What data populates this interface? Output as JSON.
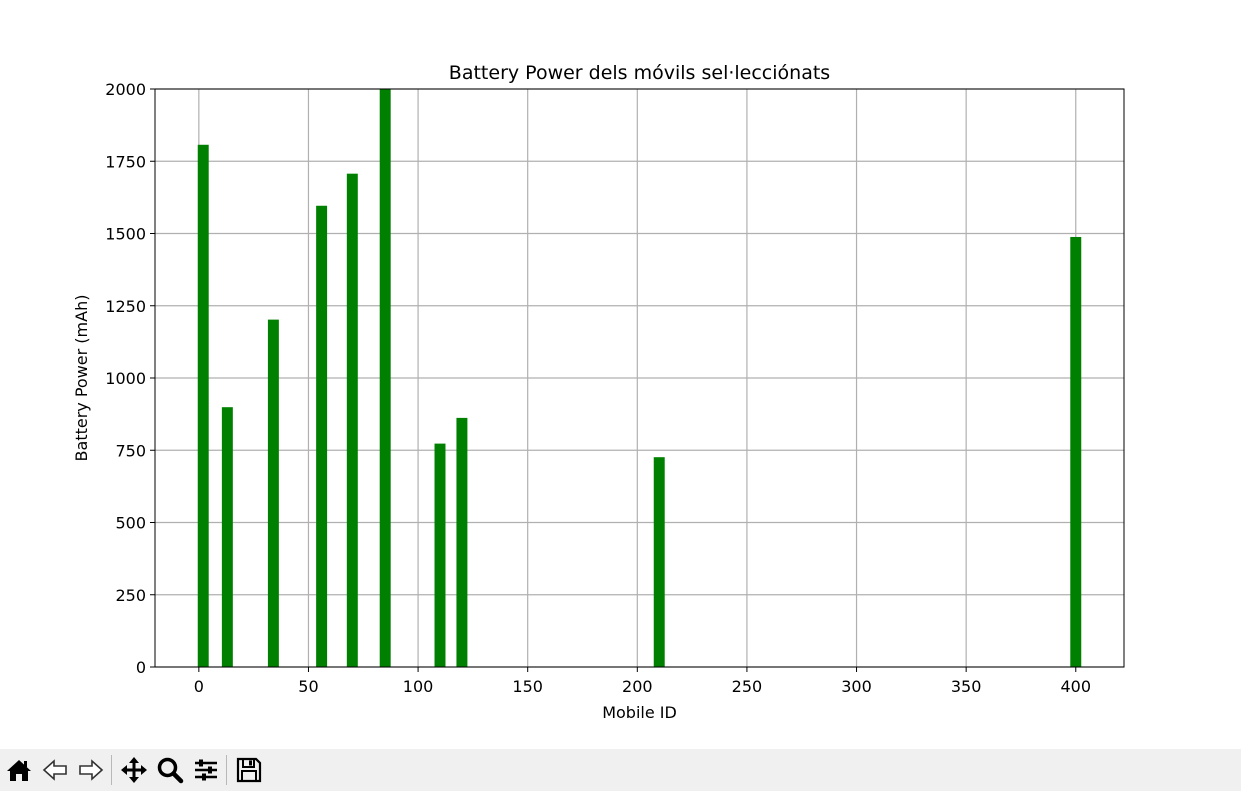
{
  "chart_data": {
    "type": "bar",
    "title": "Battery Power dels móvils sel·lecciónats",
    "xlabel": "Mobile ID",
    "ylabel": "Battery Power (mAh)",
    "bar_color": "#008000",
    "grid": true,
    "xlim": [
      -20,
      422
    ],
    "ylim": [
      0,
      2000
    ],
    "xticks": [
      0,
      50,
      100,
      150,
      200,
      250,
      300,
      350,
      400
    ],
    "yticks": [
      0,
      250,
      500,
      750,
      1000,
      1250,
      1500,
      1750,
      2000
    ],
    "bar_width": 5,
    "x": [
      2,
      13,
      34,
      56,
      70,
      85,
      110,
      120,
      210,
      400
    ],
    "values": [
      1807,
      899,
      1202,
      1596,
      1707,
      2000,
      773,
      862,
      726,
      1488
    ]
  },
  "toolbar": {
    "buttons": [
      {
        "name": "home-button",
        "icon": "home-icon"
      },
      {
        "name": "back-button",
        "icon": "back-arrow-icon"
      },
      {
        "name": "forward-button",
        "icon": "forward-arrow-icon"
      },
      {
        "name": "pan-button",
        "icon": "move-icon"
      },
      {
        "name": "zoom-button",
        "icon": "magnifier-icon"
      },
      {
        "name": "configure-subplots-button",
        "icon": "sliders-icon"
      },
      {
        "name": "save-button",
        "icon": "floppy-disk-icon"
      }
    ]
  }
}
